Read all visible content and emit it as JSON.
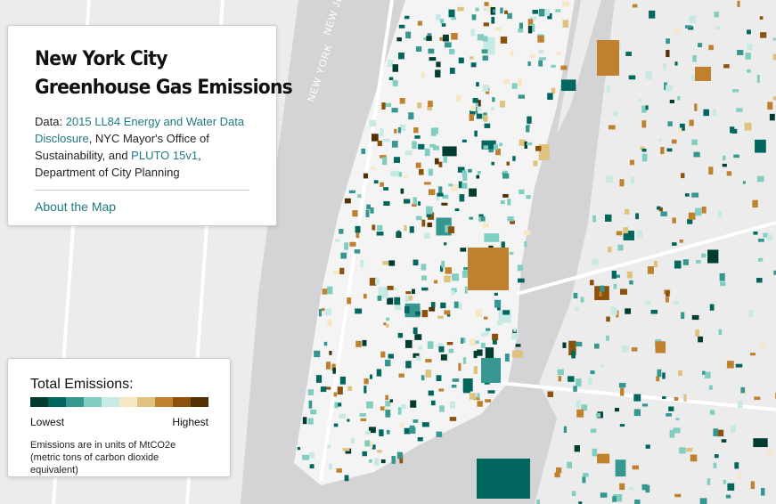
{
  "map_labels": [
    "NEW JERSEY",
    "NEW YORK"
  ],
  "info": {
    "title_line1": "New York City",
    "title_line2": "Greenhouse Gas Emissions",
    "data_prefix": "Data: ",
    "link1": "2015 LL84 Energy and Water Data Disclosure",
    "text1": ", NYC Mayor's Office of Sustainability, and ",
    "link2": "PLUTO 15v1",
    "text2": ", Department of City Planning",
    "about": "About the Map"
  },
  "legend": {
    "title": "Total Emissions:",
    "colors": [
      "#003c30",
      "#01665e",
      "#35978f",
      "#80cdc1",
      "#c7eae5",
      "#f6e8c3",
      "#dfc27d",
      "#bf812d",
      "#8c510a",
      "#543005"
    ],
    "low": "Lowest",
    "high": "Highest",
    "note": "Emissions are in units of MtCO2e (metric tons of carbon dioxide equivalent)"
  }
}
